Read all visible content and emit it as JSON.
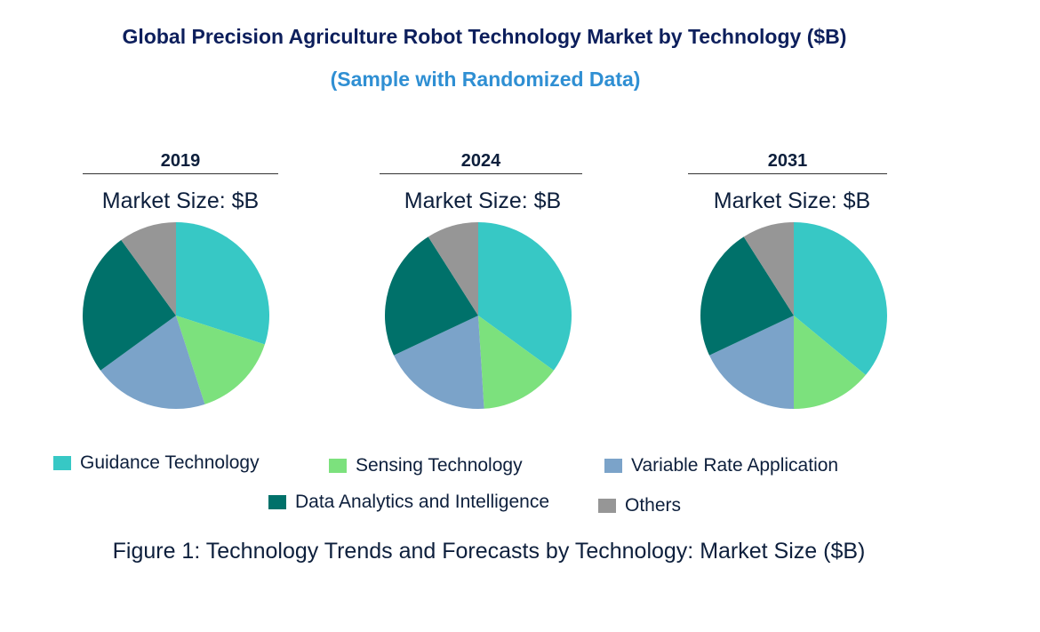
{
  "title": "Global Precision Agriculture Robot Technology Market by Technology ($B)",
  "subtitle": "(Sample with Randomized Data)",
  "caption": "Figure 1: Technology Trends and Forecasts by Technology: Market Size ($B)",
  "chart_data": {
    "type": "pie",
    "categories": [
      "Guidance Technology",
      "Sensing Technology",
      "Variable Rate Application",
      "Data Analytics and Intelligence",
      "Others"
    ],
    "colors": [
      "#37c8c5",
      "#7ce17d",
      "#7ba3c9",
      "#00716a",
      "#969696"
    ],
    "legend_position": "bottom",
    "charts": [
      {
        "title": "2019",
        "subtitle": "Market Size: $B",
        "values": [
          30,
          15,
          20,
          25,
          10
        ]
      },
      {
        "title": "2024",
        "subtitle": "Market Size: $B",
        "values": [
          35,
          14,
          19,
          23,
          9
        ]
      },
      {
        "title": "2031",
        "subtitle": "Market Size: $B",
        "values": [
          36,
          14,
          18,
          23,
          9
        ]
      }
    ]
  }
}
